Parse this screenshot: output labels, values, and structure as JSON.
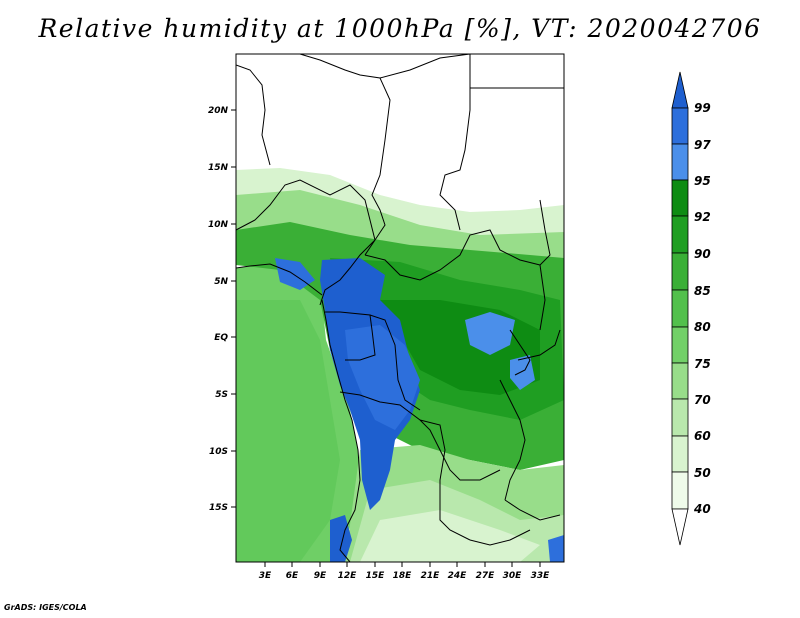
{
  "title": "Relative humidity at 1000hPa [%], VT: 2020042706",
  "credit": "GrADS: IGES/COLA",
  "lat_ticks": [
    "20N",
    "15N",
    "10N",
    "5N",
    "EQ",
    "5S",
    "10S",
    "15S"
  ],
  "lon_ticks": [
    "3E",
    "6E",
    "9E",
    "12E",
    "15E",
    "18E",
    "21E",
    "24E",
    "27E",
    "30E",
    "33E"
  ],
  "colorbar": {
    "labels": [
      "99",
      "97",
      "95",
      "92",
      "90",
      "85",
      "80",
      "75",
      "70",
      "60",
      "50",
      "40"
    ],
    "colors": [
      "#1e5fcf",
      "#2d6fdc",
      "#4b8fea",
      "#0e8c13",
      "#1f9e22",
      "#3aaf36",
      "#52c04c",
      "#72d068",
      "#98dd8a",
      "#b9e8ad",
      "#d8f3cf",
      "#effbea"
    ]
  }
}
